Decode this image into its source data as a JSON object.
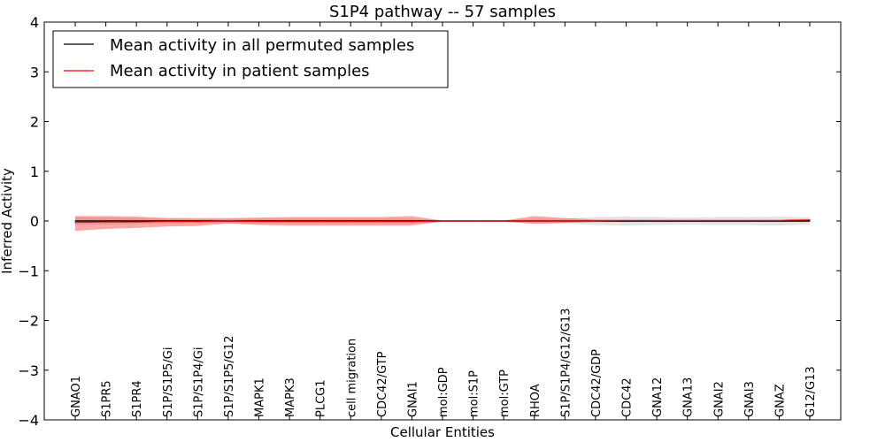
{
  "chart_data": {
    "type": "line",
    "title": "S1P4 pathway -- 57 samples",
    "xlabel": "Cellular Entities",
    "ylabel": "Inferred Activity",
    "ylim": [
      -4,
      4
    ],
    "yticks": [
      -4,
      -3,
      -2,
      -1,
      0,
      1,
      2,
      3,
      4
    ],
    "ytick_labels": [
      "−4",
      "−3",
      "−2",
      "−1",
      "0",
      "1",
      "2",
      "3",
      "4"
    ],
    "grid": false,
    "legend_position": "top-left",
    "categories": [
      "GNAO1",
      "S1PR5",
      "S1PR4",
      "S1P/S1P5/Gi",
      "S1P/S1P4/Gi",
      "S1P/S1P5/G12",
      "MAPK1",
      "MAPK3",
      "PLCG1",
      "cell migration",
      "CDC42/GTP",
      "GNAI1",
      "mol:GDP",
      "mol:S1P",
      "mol:GTP",
      "RHOA",
      "S1P/S1P4/G12/G13",
      "CDC42/GDP",
      "CDC42",
      "GNA12",
      "GNA13",
      "GNAI2",
      "GNAI3",
      "GNAZ",
      "G12/G13"
    ],
    "series": [
      {
        "name": "Mean activity in all permuted samples",
        "color": "#000000",
        "values": [
          0,
          0,
          0,
          0,
          0,
          0,
          0,
          0,
          0,
          0,
          0,
          0,
          0,
          0,
          0,
          0,
          0,
          0,
          0,
          0,
          0,
          0,
          0,
          0,
          0
        ],
        "band_lower": [
          -0.08,
          -0.07,
          -0.06,
          -0.05,
          -0.04,
          -0.04,
          -0.05,
          -0.05,
          -0.05,
          -0.05,
          -0.05,
          -0.05,
          -0.02,
          -0.02,
          -0.02,
          -0.04,
          -0.05,
          -0.08,
          -0.09,
          -0.08,
          -0.07,
          -0.08,
          -0.08,
          -0.09,
          -0.07
        ],
        "band_upper": [
          0.08,
          0.07,
          0.06,
          0.05,
          0.04,
          0.04,
          0.05,
          0.05,
          0.05,
          0.05,
          0.05,
          0.05,
          0.02,
          0.02,
          0.02,
          0.04,
          0.05,
          0.08,
          0.09,
          0.08,
          0.07,
          0.08,
          0.08,
          0.09,
          0.07
        ],
        "band_color": "#cccccc"
      },
      {
        "name": "Mean activity in patient samples",
        "color": "#ff0000",
        "values": [
          -0.03,
          -0.02,
          -0.02,
          -0.01,
          -0.01,
          0,
          -0.01,
          -0.01,
          -0.01,
          -0.01,
          -0.01,
          -0.01,
          0,
          0,
          0,
          0,
          0,
          0,
          0.01,
          0.01,
          0.01,
          0.01,
          0.01,
          0.01,
          0.02
        ],
        "band_lower": [
          -0.2,
          -0.16,
          -0.14,
          -0.11,
          -0.1,
          -0.05,
          -0.08,
          -0.09,
          -0.09,
          -0.09,
          -0.09,
          -0.09,
          -0.01,
          -0.01,
          -0.01,
          -0.06,
          -0.04,
          -0.02,
          -0.02,
          -0.02,
          -0.02,
          -0.02,
          -0.02,
          -0.02,
          -0.01
        ],
        "band_upper": [
          0.1,
          0.1,
          0.09,
          0.06,
          0.06,
          0.06,
          0.07,
          0.08,
          0.08,
          0.08,
          0.08,
          0.1,
          0.01,
          0.01,
          0.01,
          0.1,
          0.06,
          0.03,
          0.03,
          0.03,
          0.03,
          0.03,
          0.03,
          0.03,
          0.04
        ],
        "band_color": "#ff0000"
      }
    ]
  }
}
